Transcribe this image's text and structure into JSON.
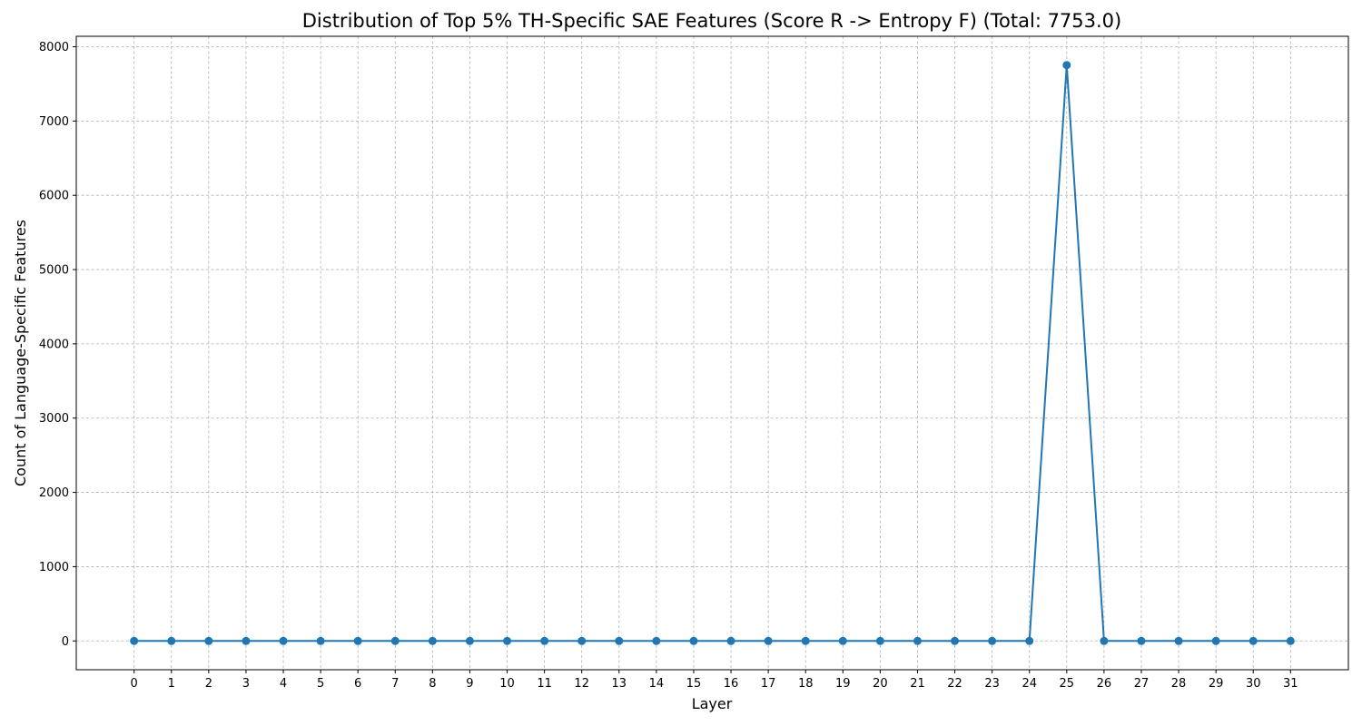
{
  "chart_data": {
    "type": "line",
    "title": "Distribution of Top 5% TH-Specific SAE Features (Score R -> Entropy F) (Total: 7753.0)",
    "xlabel": "Layer",
    "ylabel": "Count of Language-Specific Features",
    "x": [
      0,
      1,
      2,
      3,
      4,
      5,
      6,
      7,
      8,
      9,
      10,
      11,
      12,
      13,
      14,
      15,
      16,
      17,
      18,
      19,
      20,
      21,
      22,
      23,
      24,
      25,
      26,
      27,
      28,
      29,
      30,
      31
    ],
    "series": [
      {
        "values": [
          0,
          0,
          0,
          0,
          0,
          0,
          0,
          0,
          0,
          0,
          0,
          0,
          0,
          0,
          0,
          0,
          0,
          0,
          0,
          0,
          0,
          0,
          0,
          0,
          0,
          7753,
          0,
          0,
          0,
          0,
          0,
          0
        ],
        "color": "#1f77b4",
        "marker": "circle"
      }
    ],
    "xlim": [
      -1.55,
      32.55
    ],
    "ylim": [
      -387.65,
      8140.65
    ],
    "yticks": [
      0,
      1000,
      2000,
      3000,
      4000,
      5000,
      6000,
      7000,
      8000
    ],
    "grid": true
  }
}
